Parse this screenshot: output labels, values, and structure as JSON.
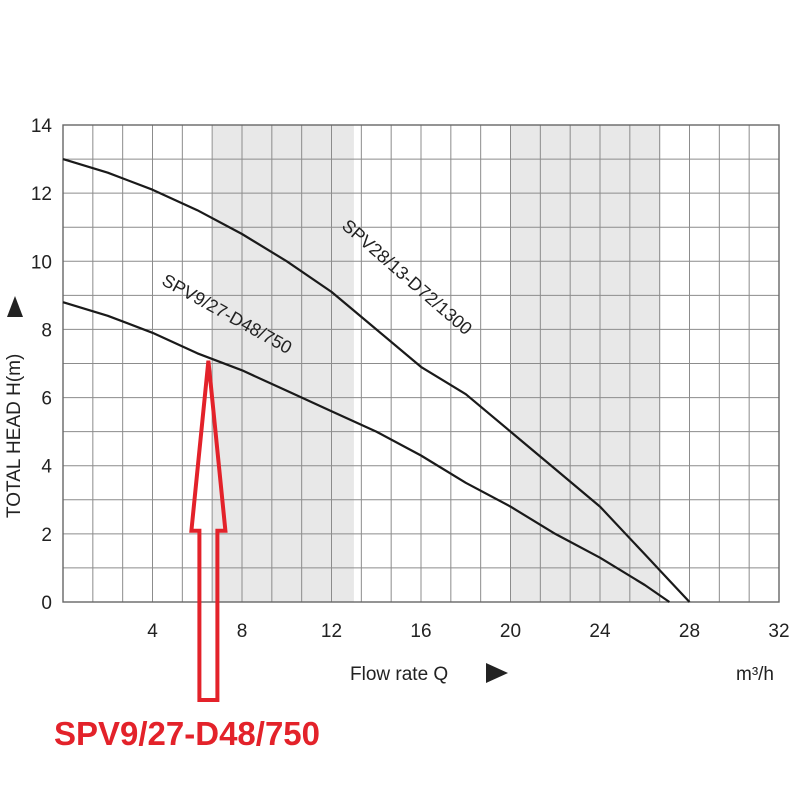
{
  "chart_data": {
    "type": "line",
    "xlabel": "Flow rate Q",
    "x_unit": "m³/h",
    "ylabel": "TOTAL HEAD H(m)",
    "xlim": [
      0,
      32
    ],
    "ylim": [
      0,
      14
    ],
    "x_ticks": [
      "4",
      "8",
      "12",
      "16",
      "20",
      "24",
      "28",
      "32"
    ],
    "y_ticks": [
      "0",
      "2",
      "4",
      "6",
      "8",
      "10",
      "12",
      "14"
    ],
    "shaded_x_bands": [
      [
        6.7,
        13
      ],
      [
        20,
        26.7
      ]
    ],
    "grid": true,
    "series": [
      {
        "name": "SPV28/13-D72/1300",
        "x": [
          0,
          2,
          4,
          6,
          8,
          10,
          12,
          14,
          16,
          18,
          20,
          22,
          24,
          26,
          27,
          28
        ],
        "y": [
          13.0,
          12.6,
          12.1,
          11.5,
          10.8,
          10.0,
          9.1,
          8.0,
          6.9,
          6.1,
          5.0,
          3.9,
          2.8,
          1.4,
          0.7,
          0.0
        ]
      },
      {
        "name": "SPV9/27-D48/750",
        "x": [
          0,
          2,
          4,
          6,
          8,
          10,
          12,
          14,
          16,
          18,
          20,
          22,
          24,
          26,
          27.1
        ],
        "y": [
          8.8,
          8.4,
          7.9,
          7.3,
          6.8,
          6.2,
          5.6,
          5.0,
          4.3,
          3.5,
          2.8,
          2.0,
          1.3,
          0.5,
          0.0
        ]
      }
    ],
    "annotation": {
      "text": "SPV9/27-D48/750",
      "color": "#e3222a",
      "points_to": {
        "x": 6.5,
        "y": 7.2
      }
    }
  }
}
